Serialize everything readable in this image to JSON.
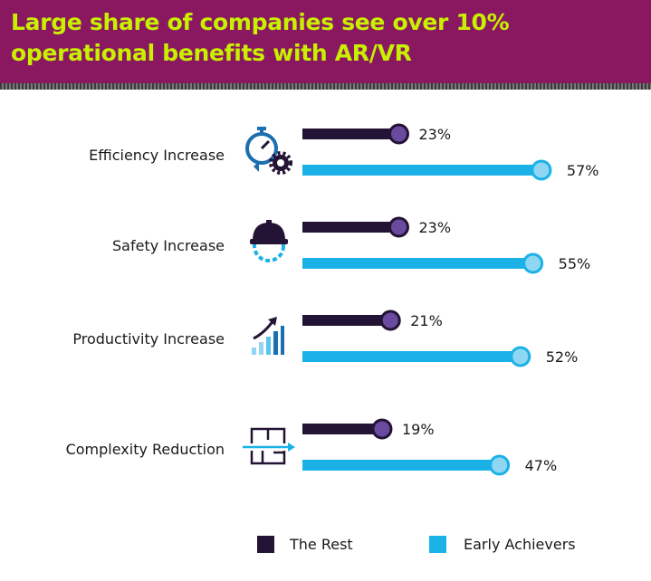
{
  "chart_data": {
    "type": "bar",
    "orientation": "horizontal",
    "title": "Large share of companies see over 10% operational benefits with AR/VR",
    "categories": [
      "Efficiency Increase",
      "Safety Increase",
      "Productivity Increase",
      "Complexity Reduction"
    ],
    "icons": [
      "stopwatch-gear-icon",
      "hardhat-gear-icon",
      "growth-chart-icon",
      "process-flow-icon"
    ],
    "series": [
      {
        "name": "The Rest",
        "values": [
          23,
          23,
          21,
          19
        ],
        "color": "#231334",
        "marker_color": "#6a4a9e"
      },
      {
        "name": "Early Achievers",
        "values": [
          57,
          55,
          52,
          47
        ],
        "color": "#1ab2e6",
        "marker_color": "#8fd6f2"
      }
    ],
    "value_suffix": "%",
    "grid": false,
    "legend_position": "bottom"
  },
  "colors": {
    "header_bg": "#8a1860",
    "title": "#c8f000"
  }
}
